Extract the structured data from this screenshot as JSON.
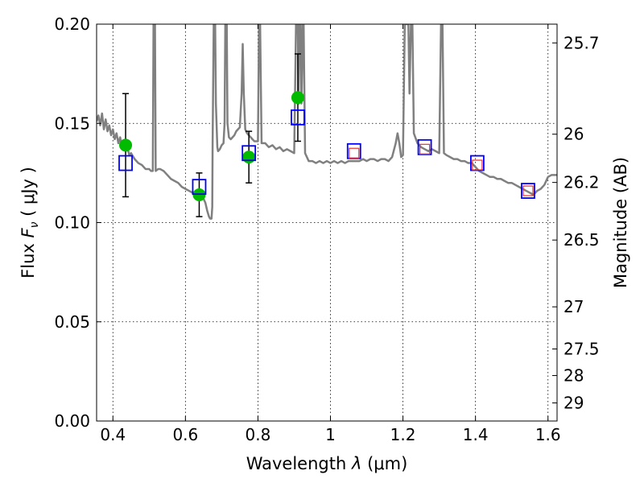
{
  "chart_data": {
    "type": "scatter",
    "xlabel": "Wavelength  λ (μm)",
    "ylabel": "Flux  F_ν  ( μJy )",
    "y2label": "Magnitude (AB)",
    "xlim": [
      0.355,
      1.625
    ],
    "ylim": [
      0.0,
      0.2
    ],
    "grid": true,
    "grid_style": "dotted",
    "x_ticks": [
      {
        "value": 0.4,
        "label": "0.4"
      },
      {
        "value": 0.6,
        "label": "0.6"
      },
      {
        "value": 0.8,
        "label": "0.8"
      },
      {
        "value": 1.0,
        "label": "1"
      },
      {
        "value": 1.2,
        "label": "1.2"
      },
      {
        "value": 1.4,
        "label": "1.4"
      },
      {
        "value": 1.6,
        "label": "1.6"
      }
    ],
    "y_ticks": [
      {
        "value": 0.0,
        "label": "0.00"
      },
      {
        "value": 0.05,
        "label": "0.05"
      },
      {
        "value": 0.1,
        "label": "0.10"
      },
      {
        "value": 0.15,
        "label": "0.15"
      },
      {
        "value": 0.2,
        "label": "0.20"
      }
    ],
    "y2_ticks": [
      {
        "value": 25.7,
        "label": "25.7"
      },
      {
        "value": 26.0,
        "label": "26"
      },
      {
        "value": 26.2,
        "label": "26.2"
      },
      {
        "value": 26.5,
        "label": "26.5"
      },
      {
        "value": 27.0,
        "label": "27"
      },
      {
        "value": 27.5,
        "label": "27.5"
      },
      {
        "value": 28.0,
        "label": "28"
      },
      {
        "value": 29.0,
        "label": "29"
      }
    ],
    "series": [
      {
        "kind": "line",
        "color": "#808080",
        "points": [
          [
            0.355,
            0.151
          ],
          [
            0.36,
            0.154
          ],
          [
            0.365,
            0.149
          ],
          [
            0.37,
            0.155
          ],
          [
            0.375,
            0.147
          ],
          [
            0.38,
            0.152
          ],
          [
            0.385,
            0.146
          ],
          [
            0.39,
            0.149
          ],
          [
            0.395,
            0.144
          ],
          [
            0.4,
            0.147
          ],
          [
            0.405,
            0.142
          ],
          [
            0.41,
            0.145
          ],
          [
            0.415,
            0.14
          ],
          [
            0.42,
            0.143
          ],
          [
            0.425,
            0.138
          ],
          [
            0.43,
            0.141
          ],
          [
            0.435,
            0.136
          ],
          [
            0.44,
            0.138
          ],
          [
            0.445,
            0.134
          ],
          [
            0.45,
            0.135
          ],
          [
            0.46,
            0.132
          ],
          [
            0.47,
            0.13
          ],
          [
            0.48,
            0.129
          ],
          [
            0.49,
            0.127
          ],
          [
            0.5,
            0.127
          ],
          [
            0.505,
            0.126
          ],
          [
            0.51,
            0.126
          ],
          [
            0.512,
            0.2
          ],
          [
            0.516,
            0.2
          ],
          [
            0.518,
            0.126
          ],
          [
            0.525,
            0.127
          ],
          [
            0.53,
            0.127
          ],
          [
            0.54,
            0.126
          ],
          [
            0.55,
            0.124
          ],
          [
            0.56,
            0.122
          ],
          [
            0.57,
            0.121
          ],
          [
            0.58,
            0.12
          ],
          [
            0.59,
            0.118
          ],
          [
            0.6,
            0.117
          ],
          [
            0.61,
            0.116
          ],
          [
            0.62,
            0.115
          ],
          [
            0.63,
            0.114
          ],
          [
            0.64,
            0.114
          ],
          [
            0.645,
            0.113
          ],
          [
            0.65,
            0.112
          ],
          [
            0.655,
            0.11
          ],
          [
            0.66,
            0.106
          ],
          [
            0.665,
            0.103
          ],
          [
            0.668,
            0.102
          ],
          [
            0.672,
            0.102
          ],
          [
            0.674,
            0.108
          ],
          [
            0.675,
            0.14
          ],
          [
            0.678,
            0.2
          ],
          [
            0.682,
            0.2
          ],
          [
            0.684,
            0.16
          ],
          [
            0.688,
            0.138
          ],
          [
            0.69,
            0.136
          ],
          [
            0.695,
            0.137
          ],
          [
            0.7,
            0.139
          ],
          [
            0.705,
            0.14
          ],
          [
            0.708,
            0.15
          ],
          [
            0.71,
            0.2
          ],
          [
            0.714,
            0.2
          ],
          [
            0.716,
            0.15
          ],
          [
            0.72,
            0.143
          ],
          [
            0.725,
            0.142
          ],
          [
            0.73,
            0.143
          ],
          [
            0.735,
            0.144
          ],
          [
            0.74,
            0.146
          ],
          [
            0.745,
            0.147
          ],
          [
            0.75,
            0.148
          ],
          [
            0.755,
            0.165
          ],
          [
            0.758,
            0.19
          ],
          [
            0.761,
            0.165
          ],
          [
            0.765,
            0.147
          ],
          [
            0.77,
            0.145
          ],
          [
            0.775,
            0.144
          ],
          [
            0.78,
            0.143
          ],
          [
            0.785,
            0.142
          ],
          [
            0.79,
            0.141
          ],
          [
            0.795,
            0.141
          ],
          [
            0.8,
            0.141
          ],
          [
            0.803,
            0.2
          ],
          [
            0.806,
            0.2
          ],
          [
            0.81,
            0.14
          ],
          [
            0.82,
            0.14
          ],
          [
            0.83,
            0.138
          ],
          [
            0.84,
            0.139
          ],
          [
            0.85,
            0.137
          ],
          [
            0.86,
            0.138
          ],
          [
            0.87,
            0.136
          ],
          [
            0.88,
            0.137
          ],
          [
            0.89,
            0.136
          ],
          [
            0.9,
            0.135
          ],
          [
            0.905,
            0.2
          ],
          [
            0.91,
            0.2
          ],
          [
            0.912,
            0.16
          ],
          [
            0.915,
            0.2
          ],
          [
            0.918,
            0.2
          ],
          [
            0.92,
            0.16
          ],
          [
            0.924,
            0.2
          ],
          [
            0.926,
            0.2
          ],
          [
            0.93,
            0.135
          ],
          [
            0.94,
            0.131
          ],
          [
            0.95,
            0.131
          ],
          [
            0.96,
            0.13
          ],
          [
            0.97,
            0.131
          ],
          [
            0.98,
            0.13
          ],
          [
            0.99,
            0.131
          ],
          [
            1.0,
            0.13
          ],
          [
            1.01,
            0.131
          ],
          [
            1.02,
            0.13
          ],
          [
            1.03,
            0.131
          ],
          [
            1.04,
            0.13
          ],
          [
            1.05,
            0.131
          ],
          [
            1.06,
            0.131
          ],
          [
            1.07,
            0.131
          ],
          [
            1.08,
            0.131
          ],
          [
            1.09,
            0.132
          ],
          [
            1.1,
            0.131
          ],
          [
            1.11,
            0.132
          ],
          [
            1.12,
            0.132
          ],
          [
            1.13,
            0.131
          ],
          [
            1.14,
            0.132
          ],
          [
            1.15,
            0.132
          ],
          [
            1.16,
            0.131
          ],
          [
            1.17,
            0.133
          ],
          [
            1.18,
            0.14
          ],
          [
            1.185,
            0.145
          ],
          [
            1.19,
            0.14
          ],
          [
            1.195,
            0.133
          ],
          [
            1.2,
            0.134
          ],
          [
            1.205,
            0.2
          ],
          [
            1.215,
            0.2
          ],
          [
            1.218,
            0.165
          ],
          [
            1.222,
            0.2
          ],
          [
            1.226,
            0.2
          ],
          [
            1.23,
            0.145
          ],
          [
            1.24,
            0.14
          ],
          [
            1.25,
            0.138
          ],
          [
            1.26,
            0.137
          ],
          [
            1.27,
            0.136
          ],
          [
            1.28,
            0.137
          ],
          [
            1.29,
            0.136
          ],
          [
            1.3,
            0.135
          ],
          [
            1.305,
            0.2
          ],
          [
            1.309,
            0.2
          ],
          [
            1.313,
            0.135
          ],
          [
            1.32,
            0.134
          ],
          [
            1.33,
            0.133
          ],
          [
            1.34,
            0.132
          ],
          [
            1.35,
            0.132
          ],
          [
            1.36,
            0.131
          ],
          [
            1.37,
            0.131
          ],
          [
            1.38,
            0.13
          ],
          [
            1.39,
            0.13
          ],
          [
            1.4,
            0.128
          ],
          [
            1.41,
            0.126
          ],
          [
            1.42,
            0.125
          ],
          [
            1.43,
            0.124
          ],
          [
            1.44,
            0.123
          ],
          [
            1.45,
            0.123
          ],
          [
            1.46,
            0.122
          ],
          [
            1.47,
            0.122
          ],
          [
            1.48,
            0.121
          ],
          [
            1.49,
            0.12
          ],
          [
            1.5,
            0.12
          ],
          [
            1.51,
            0.119
          ],
          [
            1.52,
            0.118
          ],
          [
            1.53,
            0.117
          ],
          [
            1.54,
            0.116
          ],
          [
            1.55,
            0.115
          ],
          [
            1.56,
            0.114
          ],
          [
            1.57,
            0.116
          ],
          [
            1.58,
            0.117
          ],
          [
            1.59,
            0.119
          ],
          [
            1.6,
            0.123
          ],
          [
            1.61,
            0.124
          ],
          [
            1.625,
            0.124
          ]
        ]
      },
      {
        "kind": "points",
        "marker": "circle",
        "color": "#00bb00",
        "points": [
          [
            0.435,
            0.139
          ],
          [
            0.638,
            0.114
          ],
          [
            0.775,
            0.133
          ],
          [
            0.91,
            0.163
          ]
        ],
        "errors": [
          [
            0.113,
            0.165
          ],
          [
            0.103,
            0.125
          ],
          [
            0.12,
            0.146
          ],
          [
            0.141,
            0.185
          ]
        ]
      },
      {
        "kind": "points",
        "marker": "square",
        "color": "#0000ff",
        "points": [
          [
            0.435,
            0.13
          ],
          [
            0.638,
            0.118
          ],
          [
            0.775,
            0.135
          ],
          [
            0.91,
            0.153
          ],
          [
            1.065,
            0.136
          ],
          [
            1.26,
            0.138
          ],
          [
            1.405,
            0.13
          ],
          [
            1.545,
            0.116
          ]
        ]
      },
      {
        "kind": "points",
        "marker": "square-small",
        "color": "#e83030",
        "points": [
          [
            1.065,
            0.135
          ],
          [
            1.26,
            0.137
          ],
          [
            1.405,
            0.129
          ],
          [
            1.545,
            0.116
          ]
        ]
      }
    ]
  }
}
